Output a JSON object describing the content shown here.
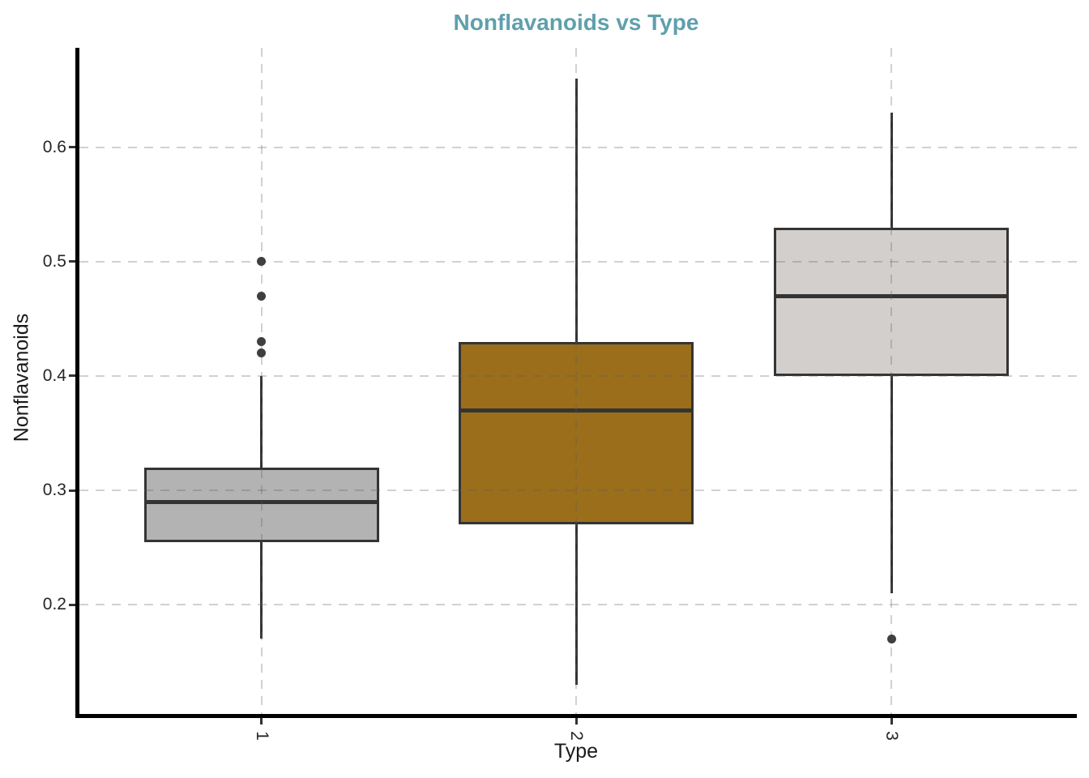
{
  "page": {
    "background": "#FFFFFF"
  },
  "chart_data": {
    "type": "boxplot",
    "title": "Nonflavanoids vs Type",
    "xlabel": "Type",
    "ylabel": "Nonflavanoids",
    "categories": [
      "1",
      "2",
      "3"
    ],
    "yticks": [
      0.2,
      0.3,
      0.4,
      0.5,
      0.6
    ],
    "ylim": [
      0.103,
      0.687
    ],
    "legend": "none",
    "grid": {
      "style": "dashed",
      "horizontal_at": [
        0.2,
        0.3,
        0.4,
        0.5,
        0.6
      ],
      "vertical_at_categories": true,
      "drawn_over_boxes": true,
      "color": "rgba(90,90,90,0.28)"
    },
    "series": [
      {
        "category": "1",
        "whisker_low": 0.17,
        "q1": 0.255,
        "median": 0.29,
        "q3": 0.32,
        "whisker_high": 0.4,
        "outliers": [
          0.42,
          0.43,
          0.47,
          0.5
        ],
        "fill": "#B3B3B3"
      },
      {
        "category": "2",
        "whisker_low": 0.13,
        "q1": 0.27,
        "median": 0.37,
        "q3": 0.43,
        "whisker_high": 0.66,
        "outliers": [],
        "fill": "#9A6E1B"
      },
      {
        "category": "3",
        "whisker_low": 0.21,
        "q1": 0.4,
        "median": 0.47,
        "q3": 0.53,
        "whisker_high": 0.63,
        "outliers": [
          0.17
        ],
        "fill": "#D3CFCD"
      }
    ],
    "colors": {
      "title": "#5FA0AC",
      "axis_line": "#000000",
      "tick_mark": "#333333",
      "tick_text": "#262626",
      "axis_label_text": "#1A1A1A",
      "box_border": "#343434",
      "median": "#343434",
      "whisker": "#343434",
      "outlier": "#3F3F3F"
    }
  }
}
